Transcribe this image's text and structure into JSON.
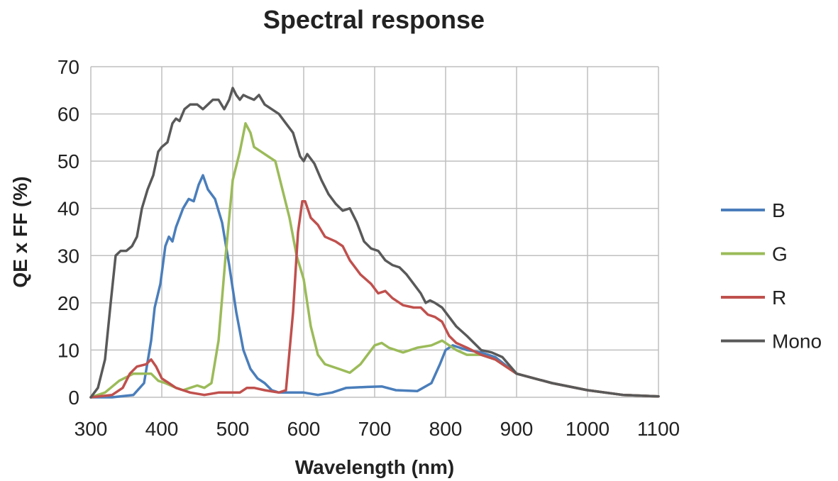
{
  "chart_data": {
    "type": "line",
    "title": "Spectral response",
    "xlabel": "Wavelength (nm)",
    "ylabel": "QE x FF (%)",
    "xlim": [
      300,
      1100
    ],
    "ylim": [
      0,
      70
    ],
    "xticks": [
      300,
      400,
      500,
      600,
      700,
      800,
      900,
      1000,
      1100
    ],
    "yticks": [
      0,
      10,
      20,
      30,
      40,
      50,
      60,
      70
    ],
    "grid": true,
    "legend_position": "right",
    "series": [
      {
        "name": "B",
        "color": "#4a7ebb",
        "points": [
          [
            300,
            0
          ],
          [
            330,
            0
          ],
          [
            360,
            0.5
          ],
          [
            375,
            3
          ],
          [
            385,
            12
          ],
          [
            390,
            19
          ],
          [
            398,
            24
          ],
          [
            405,
            32
          ],
          [
            410,
            34
          ],
          [
            415,
            33
          ],
          [
            420,
            36
          ],
          [
            430,
            40
          ],
          [
            438,
            42
          ],
          [
            445,
            41.5
          ],
          [
            452,
            45
          ],
          [
            458,
            47
          ],
          [
            465,
            44
          ],
          [
            475,
            42
          ],
          [
            485,
            37
          ],
          [
            495,
            28
          ],
          [
            505,
            18
          ],
          [
            515,
            10
          ],
          [
            525,
            6
          ],
          [
            535,
            4
          ],
          [
            545,
            3
          ],
          [
            555,
            1.5
          ],
          [
            565,
            1
          ],
          [
            600,
            1
          ],
          [
            620,
            0.5
          ],
          [
            640,
            1
          ],
          [
            660,
            2
          ],
          [
            690,
            2.2
          ],
          [
            710,
            2.3
          ],
          [
            730,
            1.5
          ],
          [
            760,
            1.3
          ],
          [
            780,
            3
          ],
          [
            792,
            7
          ],
          [
            800,
            10
          ],
          [
            810,
            11
          ],
          [
            820,
            10.5
          ],
          [
            830,
            10
          ],
          [
            850,
            9.5
          ],
          [
            870,
            8.5
          ],
          [
            900,
            5
          ],
          [
            950,
            3
          ],
          [
            1000,
            1.5
          ],
          [
            1050,
            0.5
          ],
          [
            1100,
            0.2
          ]
        ]
      },
      {
        "name": "G",
        "color": "#9bbb59",
        "points": [
          [
            300,
            0
          ],
          [
            320,
            1
          ],
          [
            340,
            3.5
          ],
          [
            360,
            5
          ],
          [
            375,
            5
          ],
          [
            385,
            5
          ],
          [
            395,
            3.5
          ],
          [
            405,
            3
          ],
          [
            420,
            2
          ],
          [
            430,
            1.5
          ],
          [
            440,
            2
          ],
          [
            450,
            2.5
          ],
          [
            460,
            2
          ],
          [
            470,
            3
          ],
          [
            480,
            12
          ],
          [
            490,
            30
          ],
          [
            500,
            46
          ],
          [
            510,
            52
          ],
          [
            518,
            58
          ],
          [
            525,
            56
          ],
          [
            530,
            53
          ],
          [
            540,
            52
          ],
          [
            550,
            51
          ],
          [
            560,
            50
          ],
          [
            570,
            44
          ],
          [
            580,
            38
          ],
          [
            590,
            30
          ],
          [
            600,
            25
          ],
          [
            610,
            15
          ],
          [
            620,
            9
          ],
          [
            630,
            7
          ],
          [
            650,
            6
          ],
          [
            665,
            5.2
          ],
          [
            680,
            7
          ],
          [
            690,
            9
          ],
          [
            700,
            11
          ],
          [
            710,
            11.5
          ],
          [
            720,
            10.5
          ],
          [
            740,
            9.5
          ],
          [
            760,
            10.5
          ],
          [
            780,
            11
          ],
          [
            795,
            12
          ],
          [
            805,
            11
          ],
          [
            815,
            10
          ],
          [
            830,
            9
          ],
          [
            850,
            9
          ],
          [
            870,
            8
          ],
          [
            900,
            5
          ],
          [
            950,
            3
          ],
          [
            1000,
            1.5
          ],
          [
            1050,
            0.5
          ],
          [
            1100,
            0.2
          ]
        ]
      },
      {
        "name": "R",
        "color": "#c0504d",
        "points": [
          [
            300,
            0
          ],
          [
            330,
            0.5
          ],
          [
            345,
            2
          ],
          [
            355,
            5
          ],
          [
            365,
            6.5
          ],
          [
            378,
            7
          ],
          [
            385,
            8
          ],
          [
            392,
            6.5
          ],
          [
            400,
            4
          ],
          [
            410,
            3
          ],
          [
            420,
            2
          ],
          [
            440,
            1
          ],
          [
            460,
            0.5
          ],
          [
            480,
            1
          ],
          [
            510,
            1
          ],
          [
            520,
            2
          ],
          [
            530,
            2
          ],
          [
            545,
            1.5
          ],
          [
            565,
            1
          ],
          [
            575,
            1.5
          ],
          [
            585,
            18
          ],
          [
            592,
            35
          ],
          [
            598,
            41.5
          ],
          [
            602,
            41.5
          ],
          [
            610,
            38
          ],
          [
            620,
            36.5
          ],
          [
            630,
            34
          ],
          [
            645,
            33
          ],
          [
            655,
            32
          ],
          [
            665,
            29
          ],
          [
            680,
            26
          ],
          [
            695,
            24
          ],
          [
            705,
            22
          ],
          [
            715,
            22.5
          ],
          [
            725,
            21
          ],
          [
            740,
            19.5
          ],
          [
            755,
            19
          ],
          [
            765,
            19
          ],
          [
            775,
            17.5
          ],
          [
            785,
            17
          ],
          [
            795,
            16
          ],
          [
            805,
            13
          ],
          [
            815,
            11.5
          ],
          [
            830,
            10.5
          ],
          [
            850,
            9
          ],
          [
            870,
            8
          ],
          [
            900,
            5
          ],
          [
            950,
            3
          ],
          [
            1000,
            1.5
          ],
          [
            1050,
            0.5
          ],
          [
            1100,
            0.2
          ]
        ]
      },
      {
        "name": "Mono",
        "color": "#595959",
        "points": [
          [
            300,
            0
          ],
          [
            310,
            2
          ],
          [
            320,
            8
          ],
          [
            328,
            20
          ],
          [
            335,
            30
          ],
          [
            342,
            31
          ],
          [
            350,
            31
          ],
          [
            358,
            32
          ],
          [
            365,
            34
          ],
          [
            372,
            40
          ],
          [
            380,
            44
          ],
          [
            388,
            47
          ],
          [
            395,
            52
          ],
          [
            400,
            53
          ],
          [
            408,
            54
          ],
          [
            415,
            58
          ],
          [
            420,
            59
          ],
          [
            425,
            58.5
          ],
          [
            432,
            61
          ],
          [
            440,
            62
          ],
          [
            450,
            62
          ],
          [
            458,
            61
          ],
          [
            465,
            62
          ],
          [
            472,
            63
          ],
          [
            480,
            63
          ],
          [
            488,
            61
          ],
          [
            495,
            63
          ],
          [
            500,
            65.5
          ],
          [
            505,
            64
          ],
          [
            510,
            63
          ],
          [
            515,
            64
          ],
          [
            522,
            63.5
          ],
          [
            530,
            63
          ],
          [
            537,
            64
          ],
          [
            545,
            62
          ],
          [
            555,
            61
          ],
          [
            565,
            60
          ],
          [
            575,
            58
          ],
          [
            585,
            56
          ],
          [
            595,
            51
          ],
          [
            600,
            50
          ],
          [
            605,
            51.5
          ],
          [
            615,
            49.5
          ],
          [
            625,
            46
          ],
          [
            635,
            43
          ],
          [
            645,
            41
          ],
          [
            655,
            39.5
          ],
          [
            665,
            40
          ],
          [
            675,
            37
          ],
          [
            685,
            33
          ],
          [
            695,
            31.5
          ],
          [
            705,
            31
          ],
          [
            715,
            29
          ],
          [
            725,
            28
          ],
          [
            735,
            27.5
          ],
          [
            745,
            26
          ],
          [
            755,
            24
          ],
          [
            765,
            22
          ],
          [
            772,
            20
          ],
          [
            778,
            20.5
          ],
          [
            785,
            20
          ],
          [
            795,
            19
          ],
          [
            805,
            17
          ],
          [
            815,
            15
          ],
          [
            830,
            13
          ],
          [
            850,
            10
          ],
          [
            865,
            9.5
          ],
          [
            880,
            8.5
          ],
          [
            900,
            5
          ],
          [
            950,
            3
          ],
          [
            1000,
            1.5
          ],
          [
            1050,
            0.5
          ],
          [
            1100,
            0.2
          ]
        ]
      }
    ]
  }
}
